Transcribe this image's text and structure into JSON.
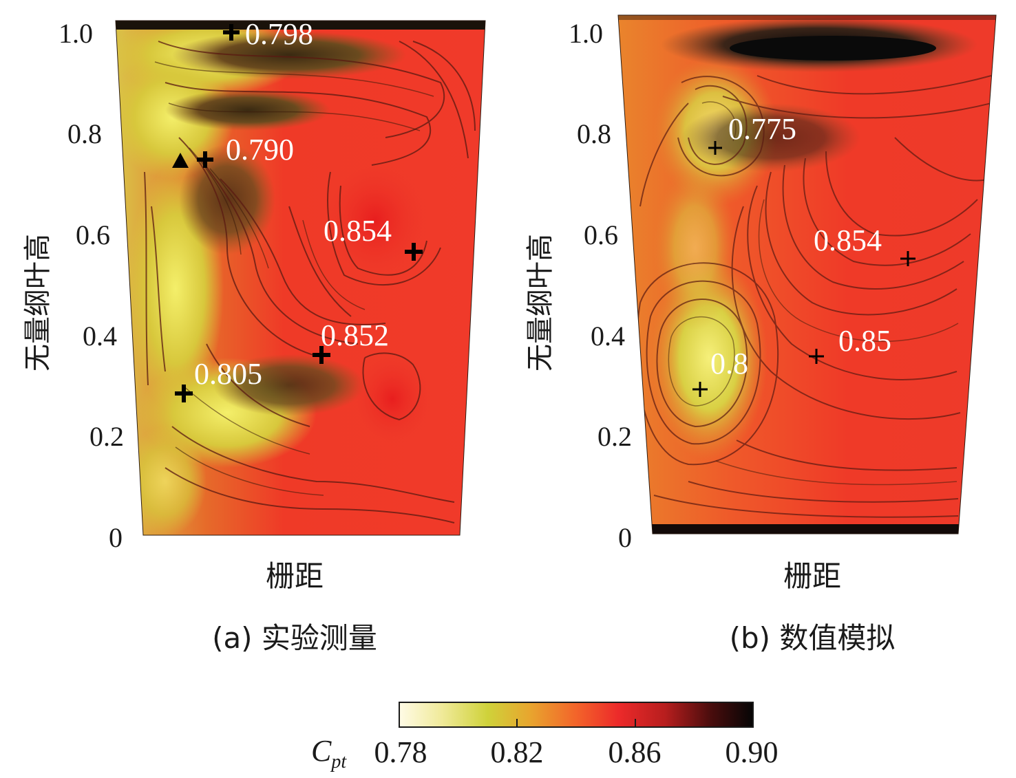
{
  "chart_data": [
    {
      "type": "heatmap",
      "caption": "(a) 实验测量",
      "xlabel": "栅距",
      "ylabel": "无量纲叶高",
      "ylim": [
        0,
        1.0
      ],
      "yticks": [
        "1.0",
        "0.8",
        "0.6",
        "0.4",
        "0.2",
        "0"
      ],
      "annotations": [
        {
          "label": "0.798",
          "span": 0.3,
          "height": 0.99,
          "marker": "+"
        },
        {
          "label": "0.790",
          "span": 0.2,
          "height": 0.74,
          "marker": "+"
        },
        {
          "label": "0.854",
          "span": 0.85,
          "height": 0.56,
          "marker": "+"
        },
        {
          "label": "0.852",
          "span": 0.55,
          "height": 0.36,
          "marker": "+"
        },
        {
          "label": "0.805",
          "span": 0.12,
          "height": 0.28,
          "marker": "+"
        }
      ]
    },
    {
      "type": "heatmap",
      "caption": "(b) 数值模拟",
      "xlabel": "栅距",
      "ylabel": "无量纲叶高",
      "ylim": [
        0,
        1.0
      ],
      "yticks": [
        "1.0",
        "0.8",
        "0.6",
        "0.4",
        "0.2",
        "0"
      ],
      "annotations": [
        {
          "label": "0.775",
          "span": 0.2,
          "height": 0.77,
          "marker": "+"
        },
        {
          "label": "0.854",
          "span": 0.8,
          "height": 0.55,
          "marker": "+"
        },
        {
          "label": "0.85",
          "span": 0.55,
          "height": 0.35,
          "marker": "+"
        },
        {
          "label": "0.8",
          "span": 0.15,
          "height": 0.29,
          "marker": "+"
        }
      ]
    }
  ],
  "colorbar": {
    "label_main": "C",
    "label_sub": "pt",
    "ticks": [
      "0.78",
      "0.82",
      "0.86",
      "0.90"
    ],
    "range": [
      0.78,
      0.9
    ],
    "colors": [
      "#fffbe6",
      "#f0ea9a",
      "#cfd23a",
      "#e8a52e",
      "#f3642a",
      "#ec2a2a",
      "#b81e1e",
      "#4a0d0d",
      "#050505"
    ]
  }
}
